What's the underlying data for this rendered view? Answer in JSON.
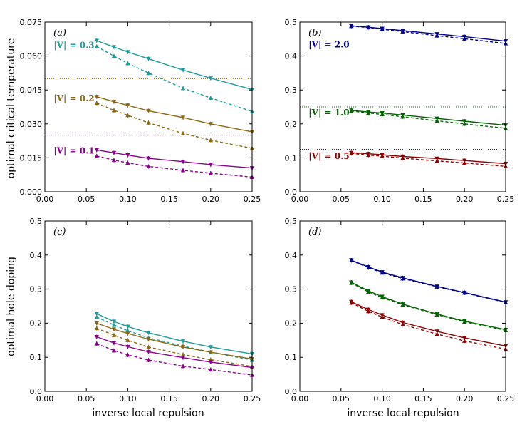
{
  "figure": {
    "ylabel_top": "optimal critical temperature",
    "ylabel_bottom": "optimal hole doping",
    "xlabel_left": "inverse local repulsion",
    "xlabel_right": "inverse local repulsion"
  },
  "colors": {
    "V0.1": "#8b008b",
    "V0.2": "#8b6914",
    "V0.3": "#1e9b9b",
    "V0.5": "#8b0000",
    "V1.0": "#006400",
    "V2.0": "#00008b"
  },
  "chart_data": [
    {
      "type": "line",
      "panel_label": "(a)",
      "xlim": [
        0.0,
        0.25
      ],
      "ylim": [
        0.0,
        0.075
      ],
      "xticks": [
        "0.00",
        "0.05",
        "0.10",
        "0.15",
        "0.20",
        "0.25"
      ],
      "yticks": [
        "0.000",
        "0.015",
        "0.030",
        "0.045",
        "0.060",
        "0.075"
      ],
      "x": [
        0.0625,
        0.0833,
        0.1,
        0.125,
        0.1667,
        0.2,
        0.25
      ],
      "series": [
        {
          "name": "|V| = 0.1",
          "color_key": "V0.1",
          "style": "solid",
          "marker": "tri-down",
          "values": [
            0.0185,
            0.0172,
            0.0162,
            0.0148,
            0.0133,
            0.012,
            0.0105
          ]
        },
        {
          "name": "|V| = 0.1",
          "color_key": "V0.1",
          "style": "dashed",
          "marker": "tri-up",
          "values": [
            0.0158,
            0.014,
            0.0128,
            0.0112,
            0.0095,
            0.0082,
            0.0065
          ]
        },
        {
          "name": "|V| = 0.2",
          "color_key": "V0.2",
          "style": "solid",
          "marker": "tri-down",
          "values": [
            0.042,
            0.0398,
            0.0382,
            0.0358,
            0.0328,
            0.03,
            0.0265
          ]
        },
        {
          "name": "|V| = 0.2",
          "color_key": "V0.2",
          "style": "dashed",
          "marker": "tri-up",
          "values": [
            0.0392,
            0.036,
            0.0338,
            0.0305,
            0.0258,
            0.0228,
            0.0192
          ]
        },
        {
          "name": "|V| = 0.3",
          "color_key": "V0.3",
          "style": "solid",
          "marker": "tri-down",
          "values": [
            0.0668,
            0.064,
            0.0618,
            0.0588,
            0.0538,
            0.0502,
            0.0452
          ]
        },
        {
          "name": "|V| = 0.3",
          "color_key": "V0.3",
          "style": "dashed",
          "marker": "tri-up",
          "values": [
            0.0642,
            0.06,
            0.0568,
            0.0525,
            0.0458,
            0.0415,
            0.0355
          ]
        }
      ],
      "hlines": [
        {
          "y": 0.05,
          "color_key": "V0.2"
        },
        {
          "y": 0.025,
          "color_key": "V0.1"
        }
      ],
      "annotations": [
        {
          "text": "|V| = 0.3",
          "color_key": "V0.3",
          "x": 0.002,
          "y": 0.0635
        },
        {
          "text": "|V| = 0.2",
          "color_key": "V0.2",
          "x": 0.002,
          "y": 0.04
        },
        {
          "text": "|V| = 0.1",
          "color_key": "V0.1",
          "x": 0.002,
          "y": 0.0168
        }
      ],
      "ylabel_key": "ylabel_top",
      "xlabel_key": null
    },
    {
      "type": "line",
      "panel_label": "(b)",
      "xlim": [
        0.0,
        0.25
      ],
      "ylim": [
        0.0,
        0.5
      ],
      "xticks": [
        "0.00",
        "0.05",
        "0.10",
        "0.15",
        "0.20",
        "0.25"
      ],
      "yticks": [
        "0.0",
        "0.1",
        "0.2",
        "0.3",
        "0.4",
        "0.5"
      ],
      "x": [
        0.0625,
        0.0833,
        0.1,
        0.125,
        0.1667,
        0.2,
        0.25
      ],
      "series": [
        {
          "name": "|V| = 0.5",
          "color_key": "V0.5",
          "style": "solid",
          "marker": "tri-down",
          "values": [
            0.115,
            0.112,
            0.109,
            0.104,
            0.098,
            0.092,
            0.083
          ]
        },
        {
          "name": "|V| = 0.5",
          "color_key": "V0.5",
          "style": "dashed",
          "marker": "tri-up",
          "values": [
            0.113,
            0.108,
            0.105,
            0.099,
            0.091,
            0.085,
            0.075
          ]
        },
        {
          "name": "|V| = 1.0",
          "color_key": "V1.0",
          "style": "solid",
          "marker": "tri-down",
          "values": [
            0.24,
            0.235,
            0.232,
            0.226,
            0.216,
            0.208,
            0.196
          ]
        },
        {
          "name": "|V| = 1.0",
          "color_key": "V1.0",
          "style": "dashed",
          "marker": "tri-up",
          "values": [
            0.238,
            0.232,
            0.228,
            0.221,
            0.209,
            0.2,
            0.187
          ]
        },
        {
          "name": "|V| = 2.0",
          "color_key": "V2.0",
          "style": "solid",
          "marker": "tri-down",
          "values": [
            0.489,
            0.485,
            0.481,
            0.475,
            0.465,
            0.457,
            0.444
          ]
        },
        {
          "name": "|V| = 2.0",
          "color_key": "V2.0",
          "style": "dashed",
          "marker": "tri-up",
          "values": [
            0.488,
            0.484,
            0.479,
            0.472,
            0.46,
            0.451,
            0.437
          ]
        }
      ],
      "hlines": [
        {
          "y": 0.25,
          "color_key": "V1.0"
        },
        {
          "y": 0.125,
          "color_key": "V0.5"
        },
        {
          "y": 0.5,
          "color_key": "V2.0"
        }
      ],
      "annotations": [
        {
          "text": "|V| = 2.0",
          "color_key": "V2.0",
          "x": 0.002,
          "y": 0.425
        },
        {
          "text": "|V| = 1.0",
          "color_key": "V1.0",
          "x": 0.002,
          "y": 0.225
        },
        {
          "text": "|V| = 0.5",
          "color_key": "V0.5",
          "x": 0.002,
          "y": 0.097
        }
      ],
      "ylabel_key": null,
      "xlabel_key": null
    },
    {
      "type": "line",
      "panel_label": "(c)",
      "xlim": [
        0.0,
        0.25
      ],
      "ylim": [
        0.0,
        0.5
      ],
      "xticks": [
        "0.00",
        "0.05",
        "0.10",
        "0.15",
        "0.20",
        "0.25"
      ],
      "yticks": [
        "0.0",
        "0.1",
        "0.2",
        "0.3",
        "0.4",
        "0.5"
      ],
      "x": [
        0.0625,
        0.0833,
        0.1,
        0.125,
        0.1667,
        0.2,
        0.25
      ],
      "series": [
        {
          "name": "|V| = 0.3",
          "color_key": "V0.3",
          "style": "solid",
          "marker": "tri-down",
          "values": [
            0.228,
            0.205,
            0.19,
            0.172,
            0.147,
            0.13,
            0.11
          ]
        },
        {
          "name": "|V| = 0.3",
          "color_key": "V0.3",
          "style": "dashed",
          "marker": "tri-up",
          "values": [
            0.218,
            0.195,
            0.178,
            0.157,
            0.133,
            0.115,
            0.092
          ]
        },
        {
          "name": "|V| = 0.2",
          "color_key": "V0.2",
          "style": "solid",
          "marker": "tri-down",
          "values": [
            0.2,
            0.182,
            0.17,
            0.153,
            0.13,
            0.115,
            0.095
          ]
        },
        {
          "name": "|V| = 0.2",
          "color_key": "V0.2",
          "style": "dashed",
          "marker": "tri-up",
          "values": [
            0.185,
            0.165,
            0.15,
            0.13,
            0.108,
            0.093,
            0.073
          ]
        },
        {
          "name": "|V| = 0.1",
          "color_key": "V0.1",
          "style": "solid",
          "marker": "tri-down",
          "values": [
            0.16,
            0.142,
            0.131,
            0.116,
            0.099,
            0.086,
            0.07
          ]
        },
        {
          "name": "|V| = 0.1",
          "color_key": "V0.1",
          "style": "dashed",
          "marker": "tri-up",
          "values": [
            0.14,
            0.12,
            0.107,
            0.092,
            0.074,
            0.064,
            0.048
          ]
        }
      ],
      "hlines": [],
      "annotations": [],
      "ylabel_key": "ylabel_bottom",
      "xlabel_key": "xlabel_left"
    },
    {
      "type": "line",
      "panel_label": "(d)",
      "xlim": [
        0.0,
        0.25
      ],
      "ylim": [
        0.0,
        0.5
      ],
      "xticks": [
        "0.00",
        "0.05",
        "0.10",
        "0.15",
        "0.20",
        "0.25"
      ],
      "yticks": [
        "0.0",
        "0.1",
        "0.2",
        "0.3",
        "0.4",
        "0.5"
      ],
      "x": [
        0.0625,
        0.0833,
        0.1,
        0.125,
        0.1667,
        0.2,
        0.25
      ],
      "series": [
        {
          "name": "|V| = 2.0",
          "color_key": "V2.0",
          "style": "solid",
          "marker": "tri-down",
          "values": [
            0.385,
            0.365,
            0.35,
            0.333,
            0.308,
            0.29,
            0.262
          ]
        },
        {
          "name": "|V| = 2.0",
          "color_key": "V2.0",
          "style": "dashed",
          "marker": "tri-up",
          "values": [
            0.384,
            0.363,
            0.348,
            0.331,
            0.307,
            0.289,
            0.261
          ]
        },
        {
          "name": "|V| = 1.0",
          "color_key": "V1.0",
          "style": "solid",
          "marker": "tri-down",
          "values": [
            0.32,
            0.295,
            0.278,
            0.256,
            0.227,
            0.206,
            0.181
          ]
        },
        {
          "name": "|V| = 1.0",
          "color_key": "V1.0",
          "style": "dashed",
          "marker": "tri-up",
          "values": [
            0.318,
            0.292,
            0.275,
            0.254,
            0.225,
            0.204,
            0.179
          ]
        },
        {
          "name": "|V| = 0.5",
          "color_key": "V0.5",
          "style": "solid",
          "marker": "tri-down",
          "values": [
            0.263,
            0.24,
            0.224,
            0.202,
            0.176,
            0.157,
            0.133
          ]
        },
        {
          "name": "|V| = 0.5",
          "color_key": "V0.5",
          "style": "dashed",
          "marker": "tri-up",
          "values": [
            0.26,
            0.235,
            0.218,
            0.196,
            0.168,
            0.148,
            0.124
          ]
        }
      ],
      "hlines": [],
      "annotations": [],
      "ylabel_key": null,
      "xlabel_key": "xlabel_right"
    }
  ]
}
